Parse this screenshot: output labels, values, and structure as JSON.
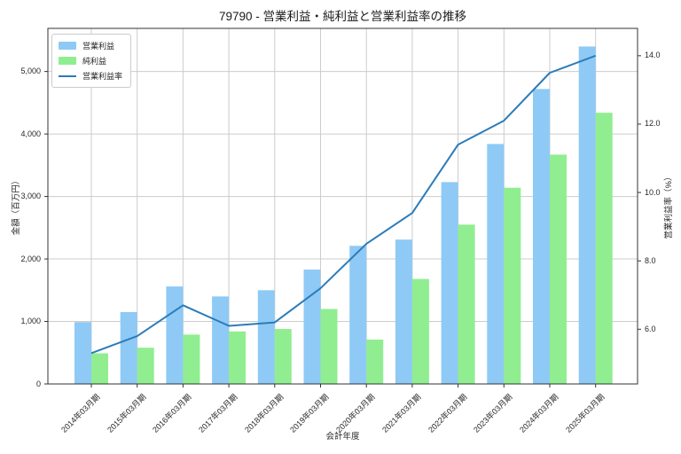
{
  "chart": {
    "title": "79790 - 営業利益・純利益と営業利益率の推移",
    "xlabel": "会計年度",
    "ylabel_left": "金額（百万円）",
    "ylabel_right": "営業利益率（%）"
  },
  "legend": {
    "items": [
      {
        "label": "営業利益",
        "type": "bar",
        "color": "#8ecaf5"
      },
      {
        "label": "純利益",
        "type": "bar",
        "color": "#90ee90"
      },
      {
        "label": "営業利益率",
        "type": "line",
        "color": "#2b7cb9"
      }
    ]
  },
  "chart_data": {
    "type": "bar+line",
    "title": "79790 - 営業利益・純利益と営業利益率の推移",
    "categories": [
      "2014年03月期",
      "2015年03月期",
      "2016年03月期",
      "2017年03月期",
      "2018年03月期",
      "2019年03月期",
      "2020年03月期",
      "2021年03月期",
      "2022年03月期",
      "2023年03月期",
      "2024年03月期",
      "2025年03月期"
    ],
    "series": [
      {
        "name": "営業利益",
        "type": "bar",
        "axis": "left",
        "color": "#8ecaf5",
        "values": [
          990,
          1150,
          1560,
          1400,
          1500,
          1830,
          2210,
          2310,
          3230,
          3840,
          4720,
          5400
        ]
      },
      {
        "name": "純利益",
        "type": "bar",
        "axis": "left",
        "color": "#90ee90",
        "values": [
          490,
          580,
          790,
          840,
          880,
          1200,
          710,
          1680,
          2550,
          3140,
          3670,
          4340
        ]
      },
      {
        "name": "営業利益率",
        "type": "line",
        "axis": "right",
        "color": "#2b7cb9",
        "values": [
          5.3,
          5.8,
          6.7,
          6.1,
          6.2,
          7.2,
          8.5,
          9.4,
          11.4,
          12.1,
          13.5,
          14.0
        ]
      }
    ],
    "axes": {
      "x": {
        "label": "会計年度",
        "tick_rotation_deg": 45
      },
      "left": {
        "label": "金額（百万円）",
        "tick_labels": [
          "0",
          "1,000",
          "2,000",
          "3,000",
          "4,000",
          "5,000"
        ],
        "tick_values": [
          0,
          1000,
          2000,
          3000,
          4000,
          5000
        ],
        "range": [
          0,
          5690
        ]
      },
      "right": {
        "label": "営業利益率（%）",
        "tick_labels": [
          "6.0",
          "8.0",
          "10.0",
          "12.0",
          "14.0"
        ],
        "tick_values": [
          6,
          8,
          10,
          12,
          14
        ],
        "range": [
          4.4,
          14.8
        ]
      }
    },
    "grid": {
      "horizontal": true,
      "vertical": true,
      "color": "#cccccc"
    },
    "legend_position": "upper left",
    "plot_border_color": "#333333",
    "background": "#ffffff"
  }
}
